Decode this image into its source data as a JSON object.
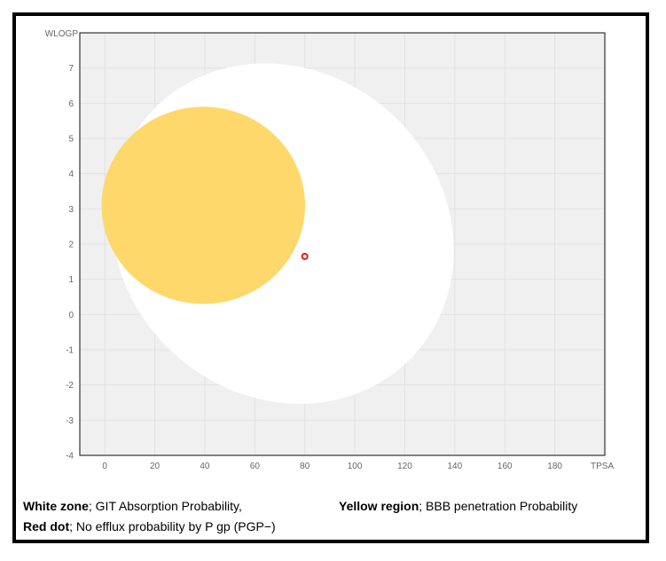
{
  "chart_data": {
    "type": "scatter",
    "x_axis_label": "TPSA",
    "y_axis_label": "WLOGP",
    "xlim": [
      -10,
      200
    ],
    "ylim": [
      -4,
      8
    ],
    "x_ticks": [
      0,
      20,
      40,
      60,
      80,
      100,
      120,
      140,
      160,
      180
    ],
    "y_ticks": [
      -4,
      -3,
      -2,
      -1,
      0,
      1,
      2,
      3,
      4,
      5,
      6,
      7
    ],
    "grid": true,
    "regions": [
      {
        "kind": "ellipse",
        "color": "#ffffff",
        "center": [
          71.1,
          2.3
        ],
        "rx": 71.6,
        "ry": 4.6,
        "rotation_deg": 43
      },
      {
        "kind": "ellipse",
        "color": "#fed86b",
        "center": [
          39.4,
          3.1
        ],
        "rx": 40.7,
        "ry": 2.8,
        "rotation_deg": 0
      }
    ],
    "points": [
      {
        "x": 80,
        "y": 1.65,
        "color": "#e31a1c"
      }
    ]
  },
  "captions": {
    "white_label": "White zone",
    "white_text": "; GIT Absorption Probability,",
    "yellow_label": "Yellow region",
    "yellow_text": "; BBB penetration Probability",
    "red_label": "Red dot",
    "red_text": "; No efflux probability by P gp (PGP−)"
  }
}
